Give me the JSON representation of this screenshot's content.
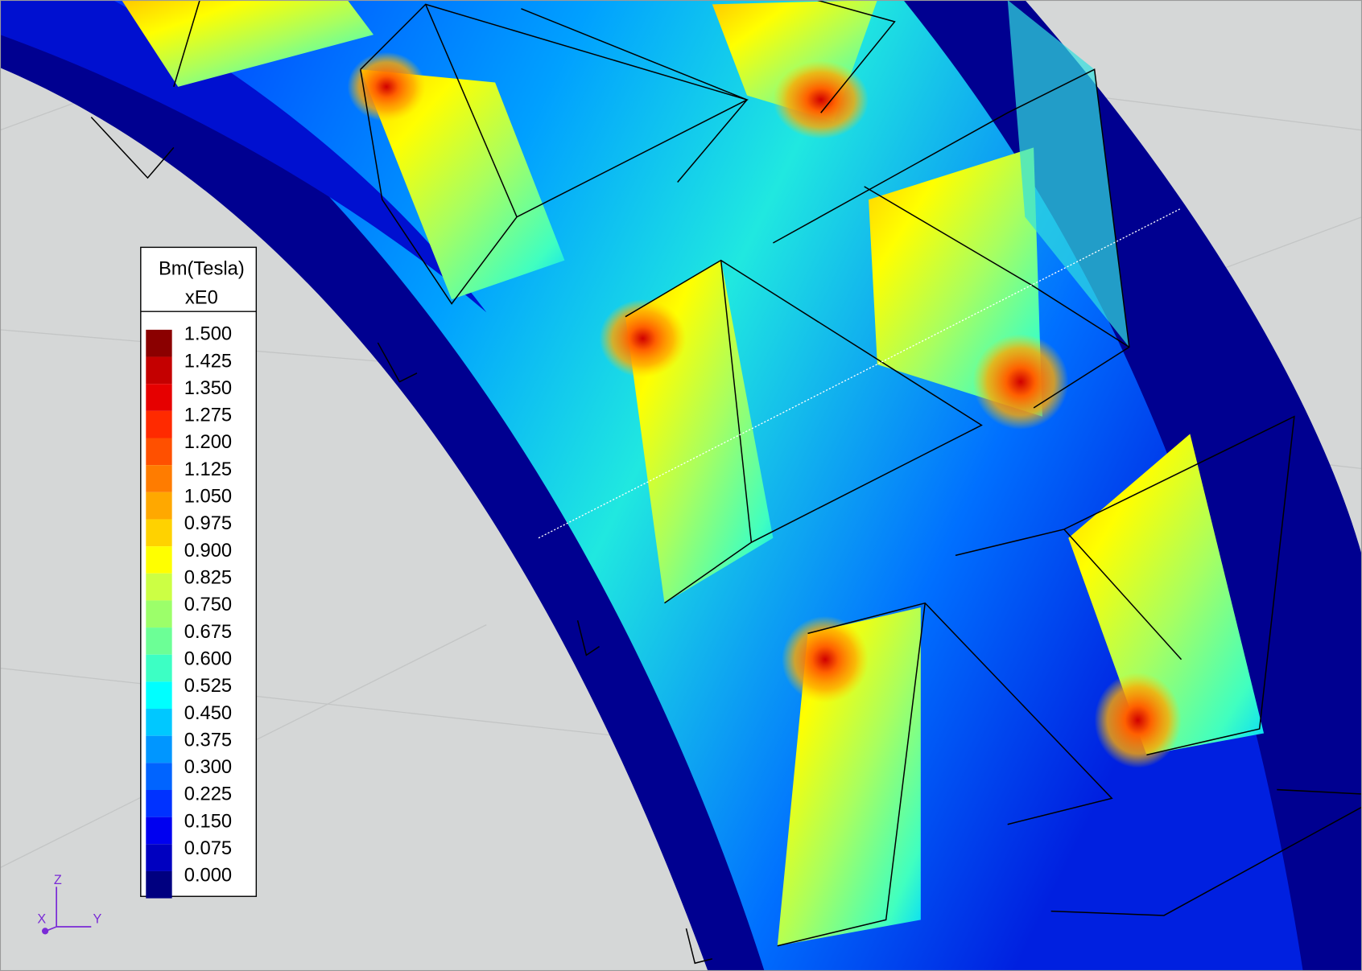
{
  "legend": {
    "title": "Bm(Tesla)",
    "subtitle": "xE0",
    "entries": [
      {
        "label": "1.500",
        "color": "#8b0000"
      },
      {
        "label": "1.425",
        "color": "#c40000"
      },
      {
        "label": "1.350",
        "color": "#e60000"
      },
      {
        "label": "1.275",
        "color": "#ff2a00"
      },
      {
        "label": "1.200",
        "color": "#ff5000"
      },
      {
        "label": "1.125",
        "color": "#ff7c00"
      },
      {
        "label": "1.050",
        "color": "#ffa800"
      },
      {
        "label": "0.975",
        "color": "#ffd200"
      },
      {
        "label": "0.900",
        "color": "#ffff00"
      },
      {
        "label": "0.825",
        "color": "#ccff44"
      },
      {
        "label": "0.750",
        "color": "#9cff6a"
      },
      {
        "label": "0.675",
        "color": "#6cff96"
      },
      {
        "label": "0.600",
        "color": "#3cffc4"
      },
      {
        "label": "0.525",
        "color": "#00ffff"
      },
      {
        "label": "0.450",
        "color": "#00c8ff"
      },
      {
        "label": "0.375",
        "color": "#0096ff"
      },
      {
        "label": "0.300",
        "color": "#0064ff"
      },
      {
        "label": "0.225",
        "color": "#0032ff"
      },
      {
        "label": "0.150",
        "color": "#0000f0"
      },
      {
        "label": "0.075",
        "color": "#0000c0"
      },
      {
        "label": "0.000",
        "color": "#000080"
      }
    ]
  },
  "triad": {
    "z": "Z",
    "y": "Y",
    "x": "X"
  }
}
